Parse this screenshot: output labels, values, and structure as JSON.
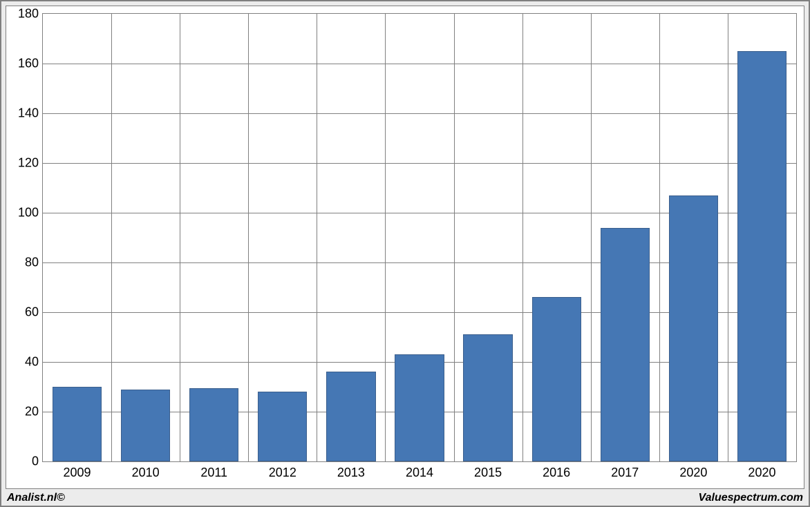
{
  "chart": {
    "type": "bar",
    "categories": [
      "2009",
      "2010",
      "2011",
      "2012",
      "2013",
      "2014",
      "2015",
      "2016",
      "2017",
      "2020",
      "2020"
    ],
    "values": [
      30,
      29,
      29.5,
      28,
      36,
      43,
      51,
      66,
      94,
      107,
      165
    ],
    "bar_color": "#4577b4",
    "bar_border_color": "#3a5e8c",
    "background_color": "#ffffff",
    "grid_color": "#808080",
    "frame_background": "#ececec",
    "frame_border_color": "#808080",
    "ylim": [
      0,
      180
    ],
    "ytick_step": 20,
    "yticks": [
      0,
      20,
      40,
      60,
      80,
      100,
      120,
      140,
      160,
      180
    ],
    "bar_width_ratio": 0.72,
    "label_fontsize": 18,
    "label_color": "#000000"
  },
  "footer": {
    "left": "Analist.nl©",
    "right": "Valuespectrum.com"
  }
}
